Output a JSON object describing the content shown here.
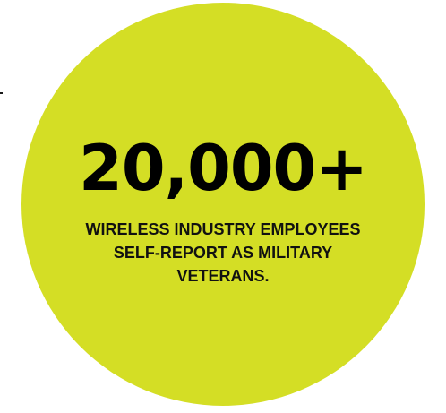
{
  "infographic": {
    "stat_value": "20,000+",
    "caption_lines": [
      "WIRELESS INDUSTRY EMPLOYEES",
      "SELF-REPORT AS MILITARY",
      "VETERANS."
    ]
  },
  "colors": {
    "circle_fill": "#d4de25",
    "text": "#000000",
    "background": "#ffffff"
  }
}
